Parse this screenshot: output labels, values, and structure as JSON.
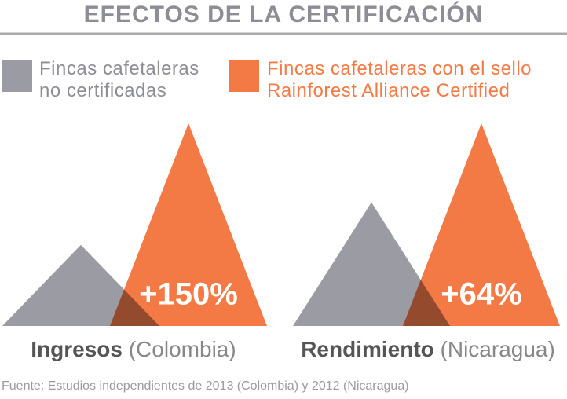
{
  "header": {
    "title": "EFECTOS DE LA CERTIFICACIÓN"
  },
  "chart_data": [
    {
      "type": "triangle",
      "xlabel": "Ingresos",
      "xlabel_detail": "(Colombia)",
      "annotation": "+150%",
      "series": [
        {
          "name": "Fincas cafetaleras no certificadas",
          "color": "#9b9ba4",
          "values": [
            100
          ]
        },
        {
          "name": "Fincas cafetaleras con el sello Rainforest Alliance Certified",
          "color": "#f47a45",
          "values": [
            250
          ]
        }
      ],
      "ylim": [
        0,
        250
      ]
    },
    {
      "type": "triangle",
      "xlabel": "Rendimiento",
      "xlabel_detail": "(Nicaragua)",
      "annotation": "+64%",
      "series": [
        {
          "name": "Fincas cafetaleras no certificadas",
          "color": "#9b9ba4",
          "values": [
            100
          ]
        },
        {
          "name": "Fincas cafetaleras con el sello Rainforest Alliance Certified",
          "color": "#f47a45",
          "values": [
            164
          ]
        }
      ],
      "ylim": [
        0,
        164
      ]
    }
  ],
  "footer": {
    "source": "Fuente: Estudios independientes de 2013 (Colombia) y 2012 (Nicaragua)"
  }
}
